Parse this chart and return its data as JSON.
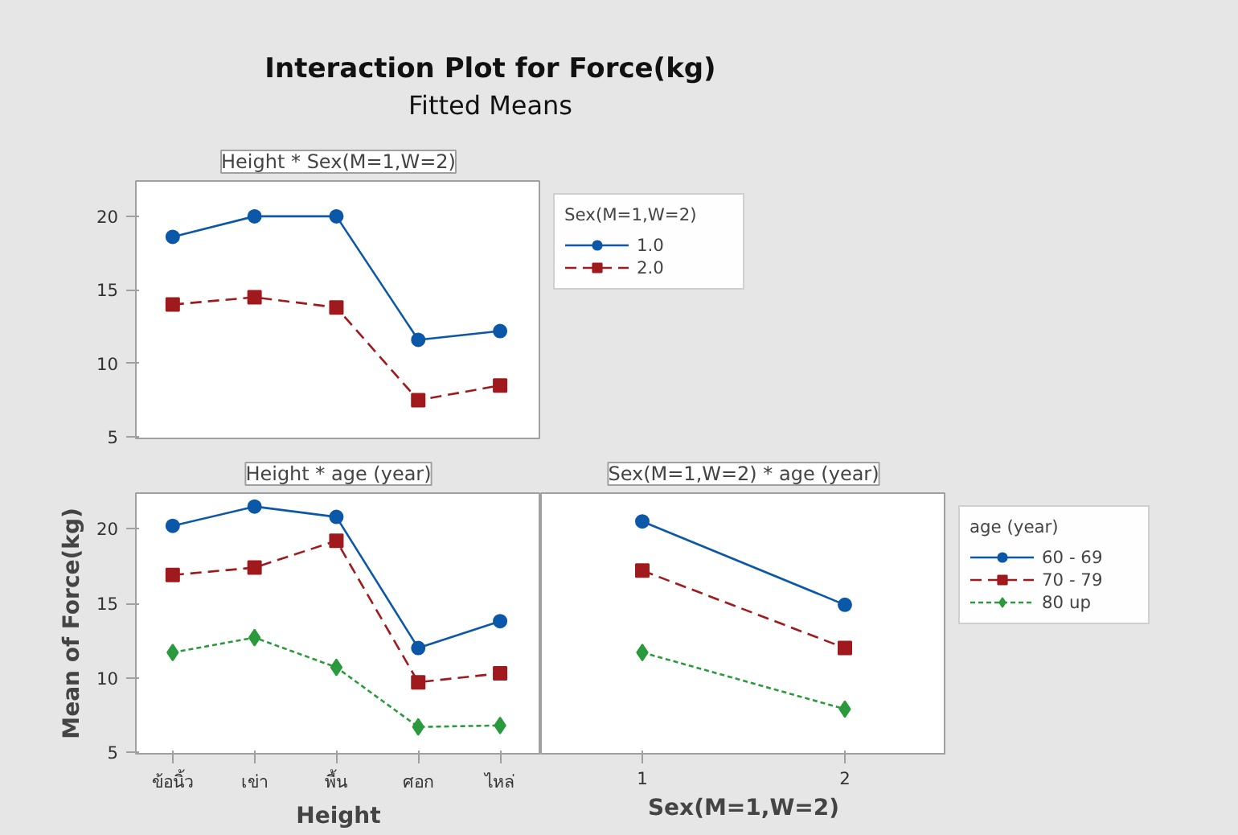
{
  "chart_data": [
    {
      "type": "line",
      "title": "Height * Sex(M=1,W=2)",
      "annotations": [
        "Interaction Plot for Force(kg)",
        "Fitted Means"
      ],
      "categories": [
        null,
        null,
        null,
        null,
        null
      ],
      "series": [
        {
          "name": "1.0",
          "color": "#0b57a8",
          "marker": "circle",
          "line_style": "solid",
          "values": [
            18.6,
            20.0,
            20.0,
            11.6,
            12.2
          ]
        },
        {
          "name": "2.0",
          "color": "#a0191c",
          "marker": "square",
          "line_style": "dashed",
          "values": [
            14.0,
            14.5,
            13.8,
            7.5,
            8.5
          ]
        }
      ],
      "ylim": [
        4.9,
        22.4
      ],
      "yticks": [
        5,
        10,
        15,
        20
      ],
      "tick_labels": "y",
      "legend": "right",
      "legend_title": "Sex(M=1,W=2)",
      "grid": false
    },
    {
      "type": "line",
      "title": "Height * age (year)",
      "xlabel": "Height",
      "ylabel": "Mean of Force(kg)",
      "categories": [
        "ข้อนิ้ว",
        "เข่า",
        "พื้น",
        "ศอก",
        "ไหล่"
      ],
      "series": [
        {
          "color": "#0b57a8",
          "marker": "circle",
          "line_style": "solid",
          "values": [
            20.2,
            21.5,
            20.8,
            12.0,
            13.8
          ]
        },
        {
          "color": "#a0191c",
          "marker": "square",
          "line_style": "dashed",
          "values": [
            16.9,
            17.4,
            19.2,
            9.7,
            10.3
          ]
        },
        {
          "color": "#2a9a3c",
          "marker": "diamond",
          "line_style": "dotted",
          "values": [
            11.7,
            12.7,
            10.7,
            6.7,
            6.8
          ]
        }
      ],
      "ylim": [
        4.9,
        22.4
      ],
      "yticks": [
        5,
        10,
        15,
        20
      ],
      "legend": false,
      "grid": false
    },
    {
      "type": "line",
      "title": "Sex(M=1,W=2) * age (year)",
      "xlabel": "Sex(M=1,W=2)",
      "x": [
        1,
        2
      ],
      "xlim": [
        0.5,
        2.5
      ],
      "xticks": [
        1,
        2
      ],
      "series": [
        {
          "name": "60 - 69",
          "color": "#0b57a8",
          "marker": "circle",
          "line_style": "solid",
          "values": [
            20.5,
            14.9
          ]
        },
        {
          "name": "70 - 79",
          "color": "#a0191c",
          "marker": "square",
          "line_style": "dashed",
          "values": [
            17.2,
            12.0
          ]
        },
        {
          "name": "80 up",
          "color": "#2a9a3c",
          "marker": "diamond",
          "line_style": "dotted",
          "values": [
            11.7,
            7.9
          ]
        }
      ],
      "ylim": [
        4.9,
        22.4
      ],
      "tick_labels": "x",
      "legend": "right",
      "legend_title": "age (year)",
      "grid": false
    }
  ]
}
